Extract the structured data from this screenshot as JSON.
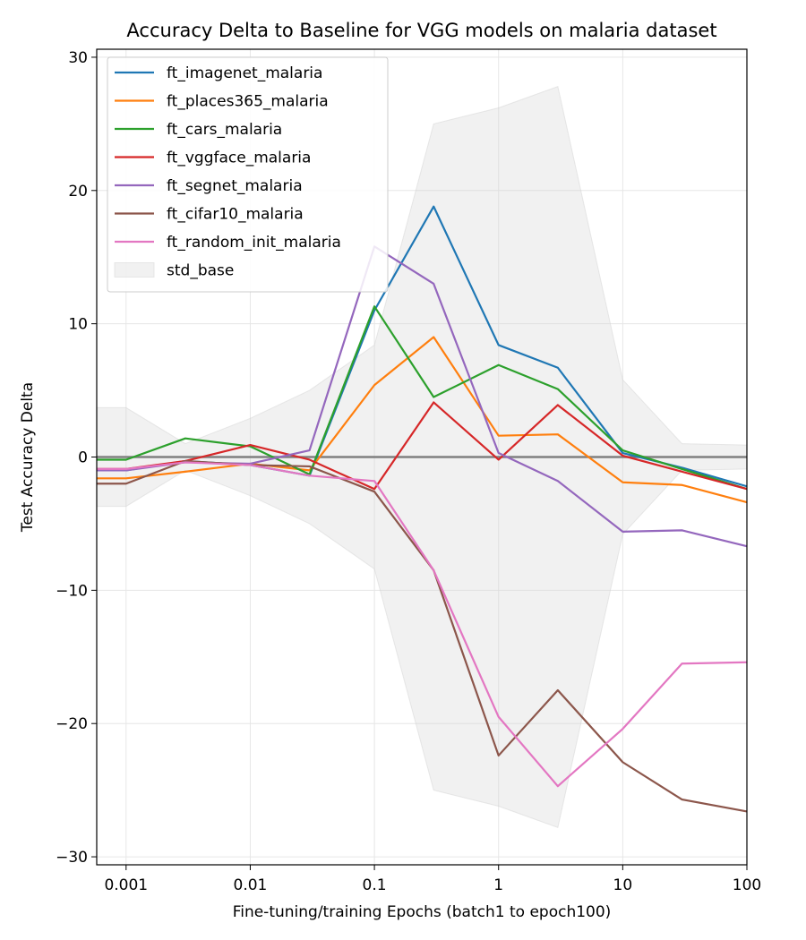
{
  "chart_data": {
    "type": "line",
    "title": "Accuracy Delta to Baseline for VGG models on malaria dataset",
    "xlabel": "Fine-tuning/training Epochs (batch1 to epoch100)",
    "ylabel": "Test Accuracy Delta",
    "x_scale": "log",
    "x": [
      0.001,
      0.003,
      0.01,
      0.03,
      0.1,
      0.3,
      1,
      3,
      10,
      30,
      100
    ],
    "x_ticks": [
      0.001,
      0.01,
      0.1,
      1,
      10,
      100
    ],
    "x_tick_labels": [
      "0.001",
      "0.01",
      "0.1",
      "1",
      "10",
      "100"
    ],
    "xlim": [
      0.00058,
      100
    ],
    "ylim": [
      -30.6,
      30.6
    ],
    "y_ticks": [
      -30,
      -20,
      -10,
      0,
      10,
      20,
      30
    ],
    "y_tick_labels": [
      "−30",
      "−20",
      "−10",
      "0",
      "10",
      "20",
      "30"
    ],
    "grid": true,
    "legend_position": "upper-left",
    "baseline_value": 0,
    "baseline_color": "#808080",
    "series": [
      {
        "name": "ft_imagenet_malaria",
        "color": "#1f77b4",
        "x": [
          0.00058,
          0.001,
          0.003,
          0.01,
          0.03,
          0.1,
          0.3,
          1,
          3,
          10,
          30,
          100
        ],
        "values": [
          -1.0,
          -1.0,
          -0.3,
          -0.6,
          -1.4,
          11.0,
          18.8,
          8.4,
          6.7,
          0.3,
          -0.8,
          -2.2
        ]
      },
      {
        "name": "ft_places365_malaria",
        "color": "#ff7f0e",
        "x": [
          0.00058,
          0.001,
          0.003,
          0.01,
          0.03,
          0.1,
          0.3,
          1,
          3,
          10,
          30,
          100
        ],
        "values": [
          -1.6,
          -1.6,
          -1.1,
          -0.5,
          -1.0,
          5.4,
          9.0,
          1.6,
          1.7,
          -1.9,
          -2.1,
          -3.4
        ]
      },
      {
        "name": "ft_cars_malaria",
        "color": "#2ca02c",
        "x": [
          0.00058,
          0.001,
          0.003,
          0.01,
          0.03,
          0.1,
          0.3,
          1,
          3,
          10,
          30,
          100
        ],
        "values": [
          -0.2,
          -0.2,
          1.4,
          0.8,
          -1.3,
          11.3,
          4.5,
          6.9,
          5.1,
          0.5,
          -0.9,
          -2.4
        ]
      },
      {
        "name": "ft_vggface_malaria",
        "color": "#d62728",
        "x": [
          0.00058,
          0.001,
          0.003,
          0.01,
          0.03,
          0.1,
          0.3,
          1,
          3,
          10,
          30,
          100
        ],
        "values": [
          -0.9,
          -0.9,
          -0.3,
          0.9,
          -0.2,
          -2.4,
          4.1,
          -0.2,
          3.9,
          0.1,
          -1.1,
          -2.4
        ]
      },
      {
        "name": "ft_segnet_malaria",
        "color": "#9467bd",
        "x": [
          0.00058,
          0.001,
          0.003,
          0.01,
          0.03,
          0.1,
          0.3,
          1,
          3,
          10,
          30,
          100
        ],
        "values": [
          -1.0,
          -1.0,
          -0.4,
          -0.5,
          0.5,
          15.8,
          13.0,
          0.3,
          -1.8,
          -5.6,
          -5.5,
          -6.7
        ]
      },
      {
        "name": "ft_cifar10_malaria",
        "color": "#8c564b",
        "x": [
          0.00058,
          0.001,
          0.003,
          0.01,
          0.03,
          0.1,
          0.3,
          1,
          3,
          10,
          30,
          100
        ],
        "values": [
          -2.0,
          -2.0,
          -0.3,
          -0.6,
          -0.7,
          -2.6,
          -8.5,
          -22.4,
          -17.5,
          -22.9,
          -25.7,
          -26.6
        ]
      },
      {
        "name": "ft_random_init_malaria",
        "color": "#e377c2",
        "x": [
          0.00058,
          0.001,
          0.003,
          0.01,
          0.03,
          0.1,
          0.3,
          1,
          3,
          10,
          30,
          100
        ],
        "values": [
          -0.9,
          -0.9,
          -0.4,
          -0.6,
          -1.4,
          -1.8,
          -8.5,
          -19.5,
          -24.7,
          -20.4,
          -15.5,
          -15.4
        ]
      }
    ],
    "std_band": {
      "name": "std_base",
      "color": "#d3d3d3",
      "x": [
        0.00058,
        0.001,
        0.003,
        0.01,
        0.03,
        0.1,
        0.3,
        1,
        3,
        10,
        30,
        100
      ],
      "upper": [
        3.7,
        3.7,
        1.0,
        2.9,
        5.0,
        8.4,
        25.0,
        26.2,
        27.8,
        5.8,
        1.0,
        0.9
      ],
      "lower": [
        -3.7,
        -3.7,
        -1.0,
        -2.9,
        -5.0,
        -8.4,
        -25.0,
        -26.2,
        -27.8,
        -5.8,
        -1.0,
        -0.9
      ]
    }
  }
}
